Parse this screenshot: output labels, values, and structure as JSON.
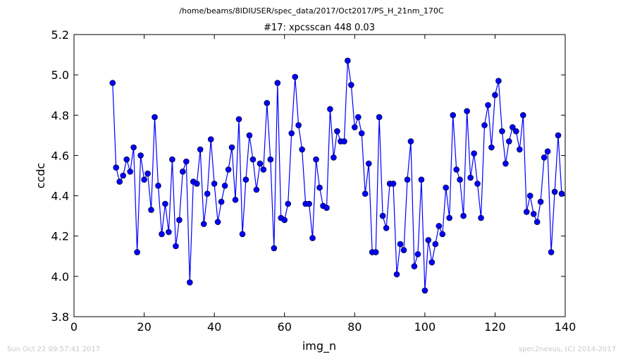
{
  "chart_data": {
    "type": "line",
    "suptitle": "/home/beams/8IDIUSER/spec_data/2017/Oct2017/PS_H_21nm_170C",
    "title": "#17: xpcsscan 448 0.03",
    "xlabel": "img_n",
    "ylabel": "ccdc",
    "xlim": [
      0,
      140
    ],
    "ylim": [
      3.8,
      5.2
    ],
    "xticks": [
      "0",
      "20",
      "40",
      "60",
      "80",
      "100",
      "120",
      "140"
    ],
    "yticks": [
      "3.8",
      "4.0",
      "4.2",
      "4.4",
      "4.6",
      "4.8",
      "5.0",
      "5.2"
    ],
    "grid": false,
    "marker": "circle",
    "color": "#0000ff",
    "x": [
      11,
      12,
      13,
      14,
      15,
      16,
      17,
      18,
      19,
      20,
      21,
      22,
      23,
      24,
      25,
      26,
      27,
      28,
      29,
      30,
      31,
      32,
      33,
      34,
      35,
      36,
      37,
      38,
      39,
      40,
      41,
      42,
      43,
      44,
      45,
      46,
      47,
      48,
      49,
      50,
      51,
      52,
      53,
      54,
      55,
      56,
      57,
      58,
      59,
      60,
      61,
      62,
      63,
      64,
      65,
      66,
      67,
      68,
      69,
      70,
      71,
      72,
      73,
      74,
      75,
      76,
      77,
      78,
      79,
      80,
      81,
      82,
      83,
      84,
      85,
      86,
      87,
      88,
      89,
      90,
      91,
      92,
      93,
      94,
      95,
      96,
      97,
      98,
      99,
      100,
      101,
      102,
      103,
      104,
      105,
      106,
      107,
      108,
      109,
      110,
      111,
      112,
      113,
      114,
      115,
      116,
      117,
      118,
      119,
      120,
      121,
      122,
      123,
      124,
      125,
      126,
      127,
      128,
      129,
      130,
      131,
      132,
      133,
      134,
      135,
      136,
      137,
      138,
      139
    ],
    "y": [
      4.96,
      4.54,
      4.47,
      4.5,
      4.58,
      4.52,
      4.64,
      4.12,
      4.6,
      4.48,
      4.51,
      4.33,
      4.79,
      4.45,
      4.21,
      4.36,
      4.22,
      4.58,
      4.15,
      4.28,
      4.52,
      4.57,
      3.97,
      4.47,
      4.46,
      4.63,
      4.26,
      4.41,
      4.68,
      4.46,
      4.27,
      4.37,
      4.45,
      4.53,
      4.64,
      4.38,
      4.78,
      4.21,
      4.48,
      4.7,
      4.58,
      4.43,
      4.56,
      4.53,
      4.86,
      4.58,
      4.14,
      4.96,
      4.29,
      4.28,
      4.36,
      4.71,
      4.99,
      4.75,
      4.63,
      4.36,
      4.36,
      4.19,
      4.58,
      4.44,
      4.35,
      4.34,
      4.83,
      4.59,
      4.72,
      4.67,
      4.67,
      5.07,
      4.95,
      4.74,
      4.79,
      4.71,
      4.41,
      4.56,
      4.12,
      4.12,
      4.79,
      4.3,
      4.24,
      4.46,
      4.46,
      4.01,
      4.16,
      4.13,
      4.48,
      4.67,
      4.05,
      4.11,
      4.48,
      3.93,
      4.18,
      4.07,
      4.16,
      4.25,
      4.21,
      4.44,
      4.29,
      4.8,
      4.53,
      4.48,
      4.3,
      4.82,
      4.49,
      4.61,
      4.46,
      4.29,
      4.75,
      4.85,
      4.64,
      4.9,
      4.97,
      4.72,
      4.56,
      4.67,
      4.74,
      4.72,
      4.63,
      4.8,
      4.32,
      4.4,
      4.31,
      4.27,
      4.37,
      4.59,
      4.62,
      4.12,
      4.42,
      4.7,
      4.41
    ]
  },
  "footer": {
    "timestamp": "Sun Oct 22 09:57:41 2017",
    "credit": "spec2nexus, (C) 2014-2017"
  }
}
